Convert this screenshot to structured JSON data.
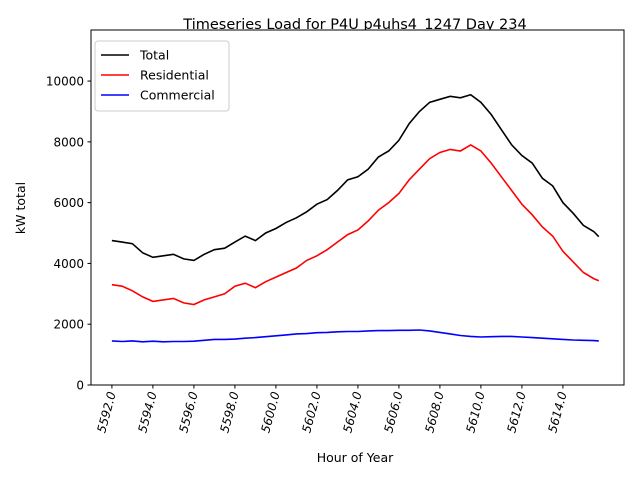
{
  "chart_data": {
    "type": "line",
    "title": "Timeseries Load for P4U p4uhs4_1247  Day 234",
    "xlabel": "Hour of Year",
    "ylabel": "kW total",
    "xlim": [
      5590.98,
      5616.98
    ],
    "ylim": [
      0,
      11680
    ],
    "xticks": [
      5592,
      5594,
      5596,
      5598,
      5600,
      5602,
      5604,
      5606,
      5608,
      5610,
      5612,
      5614
    ],
    "xtick_labels": [
      "5592.0",
      "5594.0",
      "5596.0",
      "5598.0",
      "5600.0",
      "5602.0",
      "5604.0",
      "5606.0",
      "5608.0",
      "5610.0",
      "5612.0",
      "5614.0"
    ],
    "yticks": [
      0,
      2000,
      4000,
      6000,
      8000,
      10000
    ],
    "ytick_labels": [
      "0",
      "2000",
      "4000",
      "6000",
      "8000",
      "10000"
    ],
    "legend_position": "top-left",
    "x": [
      5592,
      5592.5,
      5593,
      5593.5,
      5594,
      5594.5,
      5595,
      5595.5,
      5596,
      5596.5,
      5597,
      5597.5,
      5598,
      5598.5,
      5599,
      5599.5,
      5600,
      5600.5,
      5601,
      5601.5,
      5602,
      5602.5,
      5603,
      5603.5,
      5604,
      5604.5,
      5605,
      5605.5,
      5606,
      5606.5,
      5607,
      5607.5,
      5608,
      5608.5,
      5609,
      5609.5,
      5610,
      5610.5,
      5611,
      5611.5,
      5612,
      5612.5,
      5613,
      5613.5,
      5614,
      5614.5,
      5615,
      5615.5,
      5615.75
    ],
    "series": [
      {
        "name": "Total",
        "color": "#000000",
        "values": [
          4750,
          4700,
          4650,
          4350,
          4200,
          4250,
          4300,
          4150,
          4100,
          4300,
          4450,
          4500,
          4700,
          4900,
          4750,
          5000,
          5150,
          5350,
          5500,
          5700,
          5950,
          6100,
          6400,
          6750,
          6850,
          7100,
          7500,
          7700,
          8050,
          8600,
          9000,
          9300,
          9400,
          9500,
          9450,
          9550,
          9300,
          8900,
          8400,
          7900,
          7550,
          7300,
          6800,
          6550,
          6000,
          5650,
          5250,
          5050,
          4880
        ]
      },
      {
        "name": "Residential",
        "color": "#ff0000",
        "values": [
          3300,
          3250,
          3100,
          2900,
          2750,
          2800,
          2850,
          2700,
          2650,
          2800,
          2900,
          3000,
          3250,
          3350,
          3200,
          3400,
          3550,
          3700,
          3850,
          4100,
          4250,
          4450,
          4700,
          4950,
          5100,
          5400,
          5750,
          6000,
          6300,
          6750,
          7100,
          7450,
          7650,
          7750,
          7700,
          7900,
          7700,
          7300,
          6850,
          6400,
          5950,
          5600,
          5200,
          4900,
          4400,
          4050,
          3700,
          3500,
          3430
        ]
      },
      {
        "name": "Commercial",
        "color": "#0000ff",
        "values": [
          1450,
          1430,
          1450,
          1420,
          1440,
          1420,
          1430,
          1430,
          1440,
          1470,
          1500,
          1500,
          1510,
          1540,
          1560,
          1590,
          1620,
          1650,
          1680,
          1690,
          1720,
          1730,
          1750,
          1760,
          1760,
          1780,
          1790,
          1790,
          1800,
          1800,
          1810,
          1780,
          1730,
          1680,
          1630,
          1600,
          1580,
          1590,
          1600,
          1600,
          1580,
          1560,
          1540,
          1520,
          1500,
          1480,
          1470,
          1460,
          1450
        ]
      }
    ]
  }
}
